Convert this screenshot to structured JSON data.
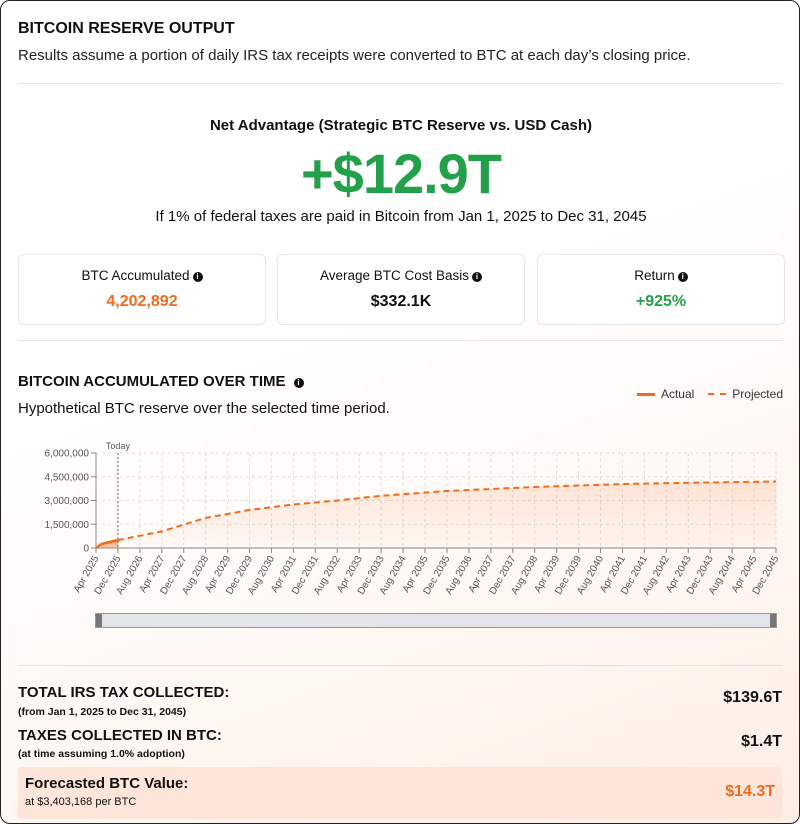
{
  "header": {
    "title": "BITCOIN RESERVE OUTPUT",
    "subtitle": "Results assume a portion of daily IRS tax receipts were converted to BTC at each day’s closing price."
  },
  "net_advantage": {
    "label": "Net Advantage (Strategic BTC Reserve vs. USD Cash)",
    "value": "+$12.9T",
    "description": "If 1% of federal taxes are paid in Bitcoin from Jan 1, 2025 to Dec 31, 2045"
  },
  "cards": [
    {
      "label": "BTC Accumulated",
      "value": "4,202,892",
      "color": "#f26a1b"
    },
    {
      "label": "Average BTC Cost Basis",
      "value": "$332.1K",
      "color": "#111111"
    },
    {
      "label": "Return",
      "value": "+925%",
      "color": "#22a04a"
    }
  ],
  "chart_section": {
    "title": "BITCOIN ACCUMULATED OVER TIME",
    "subtitle": "Hypothetical BTC reserve over the selected time period.",
    "legend_actual": "Actual",
    "legend_projected": "Projected"
  },
  "chart_data": {
    "type": "area",
    "y_ticks": [
      "0",
      "1,500,000",
      "3,000,000",
      "4,500,000",
      "6,000,000"
    ],
    "ylim": [
      0,
      6000000
    ],
    "x_ticks": [
      "Apr 2025",
      "Dec 2025",
      "Aug 2026",
      "Apr 2027",
      "Dec 2027",
      "Aug 2028",
      "Apr 2029",
      "Dec 2029",
      "Aug 2030",
      "Apr 2031",
      "Dec 2031",
      "Aug 2032",
      "Apr 2033",
      "Dec 2033",
      "Aug 2034",
      "Apr 2035",
      "Dec 2035",
      "Aug 2036",
      "Apr 2037",
      "Dec 2037",
      "Aug 2038",
      "Apr 2039",
      "Dec 2039",
      "Aug 2040",
      "Apr 2041",
      "Dec 2041",
      "Aug 2042",
      "Apr 2043",
      "Dec 2043",
      "Aug 2044",
      "Apr 2045",
      "Dec 2045"
    ],
    "xlim": [
      "2025-04",
      "2045-12"
    ],
    "today_label": "Today",
    "today": "2025-12",
    "grid": true,
    "accent": "#f26a1b",
    "series": [
      {
        "name": "Actual",
        "style": "solid",
        "points": [
          [
            "2025-04",
            0
          ],
          [
            "2025-06",
            250000
          ],
          [
            "2025-09",
            380000
          ],
          [
            "2025-12",
            500000
          ]
        ]
      },
      {
        "name": "Projected",
        "style": "dashed",
        "points": [
          [
            "2025-12",
            500000
          ],
          [
            "2027-04",
            1050000
          ],
          [
            "2028-08",
            1900000
          ],
          [
            "2029-12",
            2400000
          ],
          [
            "2031-04",
            2750000
          ],
          [
            "2032-08",
            3000000
          ],
          [
            "2033-12",
            3300000
          ],
          [
            "2035-12",
            3600000
          ],
          [
            "2038-08",
            3850000
          ],
          [
            "2041-04",
            4040000
          ],
          [
            "2043-08",
            4130000
          ],
          [
            "2045-12",
            4202892
          ]
        ]
      }
    ]
  },
  "summary": {
    "total_label": "TOTAL IRS TAX COLLECTED:",
    "total_sub": "(from Jan 1, 2025 to Dec 31, 2045)",
    "total_value": "$139.6T",
    "btc_label": "TAXES COLLECTED IN BTC:",
    "btc_sub": "(at time assuming 1.0% adoption)",
    "btc_value": "$1.4T",
    "forecast_label": "Forecasted BTC Value:",
    "forecast_sub": "at $3,403,168 per BTC",
    "forecast_value": "$14.3T"
  }
}
